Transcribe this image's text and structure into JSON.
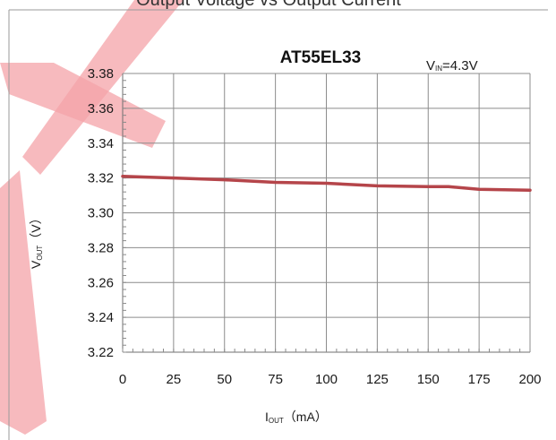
{
  "page": {
    "heading": "Output Voltage vs Output Current"
  },
  "colors": {
    "series": "#b5454a",
    "watermark": "#f4a3a8",
    "grid": "#8c8c8c"
  },
  "chart_data": {
    "type": "line",
    "title": "AT55EL33",
    "annotation": {
      "main": "V",
      "sub": "IN",
      "rest": "=4.3V"
    },
    "xlabel": {
      "main": "I",
      "sub": "OUT",
      "rest": "（mA）"
    },
    "ylabel": {
      "main": "V",
      "sub": "OUT",
      "rest": "（V）"
    },
    "xlim": [
      0,
      200
    ],
    "ylim": [
      3.22,
      3.38
    ],
    "x_ticks": [
      0,
      25,
      50,
      75,
      100,
      125,
      150,
      175,
      200
    ],
    "y_ticks": [
      3.22,
      3.24,
      3.26,
      3.28,
      3.3,
      3.32,
      3.34,
      3.36,
      3.38
    ],
    "grid": true,
    "series": [
      {
        "x": [
          0,
          25,
          50,
          75,
          100,
          125,
          150,
          160,
          175,
          200
        ],
        "values": [
          3.321,
          3.32,
          3.319,
          3.3175,
          3.317,
          3.3155,
          3.315,
          3.315,
          3.3135,
          3.313
        ]
      }
    ]
  }
}
